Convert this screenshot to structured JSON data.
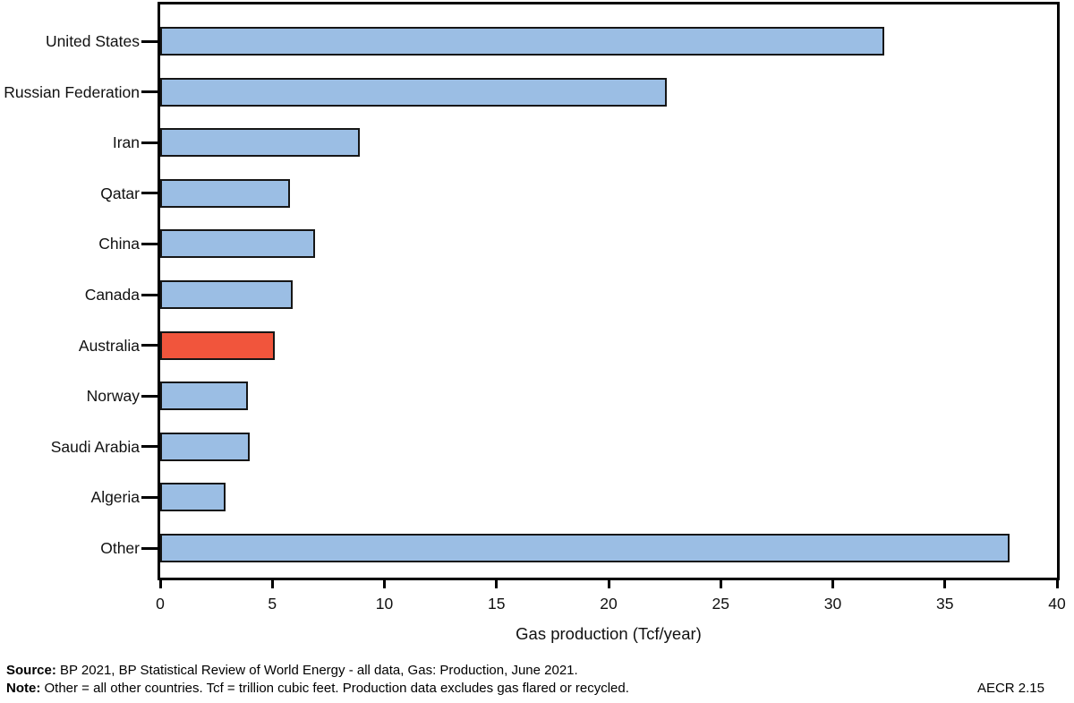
{
  "figure": {
    "footer": {
      "source_label": "Source:",
      "source_text": " BP 2021, BP Statistical Review of World Energy - all data, Gas: Production, June 2021.",
      "note_label": "Note:",
      "note_text": " Other = all other countries. Tcf = trillion cubic feet. Production data excludes gas flared or recycled.",
      "figure_number": "AECR 2.15"
    },
    "colors": {
      "bar_default": "#9BBEE4",
      "bar_highlight": "#F1553C",
      "bar_border": "#161616",
      "axis": "#000000"
    }
  },
  "chart_data": {
    "type": "bar",
    "orientation": "horizontal",
    "title": "",
    "xlabel": "Gas production (Tcf/year)",
    "ylabel": "",
    "categories": [
      "United States",
      "Russian Federation",
      "Iran",
      "Qatar",
      "China",
      "Canada",
      "Australia",
      "Norway",
      "Saudi Arabia",
      "Algeria",
      "Other"
    ],
    "values": [
      32.3,
      22.6,
      8.9,
      5.8,
      6.9,
      5.9,
      5.1,
      3.9,
      4.0,
      2.9,
      37.9
    ],
    "highlighted_category": "Australia",
    "xlim": [
      0,
      40
    ],
    "xticks": [
      0,
      5,
      10,
      15,
      20,
      25,
      30,
      35,
      40
    ],
    "grid": false,
    "legend_position": "none"
  }
}
